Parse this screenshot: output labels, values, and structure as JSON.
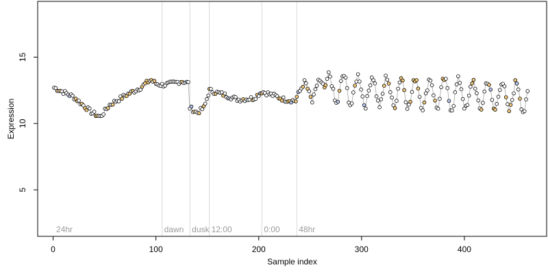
{
  "chart_data": {
    "type": "scatter",
    "xlabel": "Sample index",
    "ylabel": "Expression",
    "xlim": [
      -15,
      480
    ],
    "ylim": [
      1.5,
      19.2
    ],
    "x_ticks": [
      0,
      100,
      200,
      300,
      400
    ],
    "y_ticks": [
      5,
      10,
      15
    ],
    "grid": false,
    "phase_markers": [
      {
        "label": "24hr",
        "x": 1
      },
      {
        "label": "dawn",
        "x": 106
      },
      {
        "label": "dusk",
        "x": 133
      },
      {
        "label": "12:00",
        "x": 152
      },
      {
        "label": "0:00",
        "x": 203
      },
      {
        "label": "48hr",
        "x": 237
      }
    ],
    "segments": [
      {
        "x_start": 1,
        "x_end": 106,
        "points": [
          [
            1,
            12.7
          ],
          [
            20,
            12.0
          ],
          [
            32,
            11.2
          ],
          [
            38,
            10.8
          ],
          [
            46,
            10.5
          ],
          [
            55,
            11.4
          ],
          [
            70,
            12.1
          ],
          [
            85,
            12.7
          ],
          [
            95,
            13.3
          ],
          [
            100,
            13.0
          ],
          [
            106,
            12.9
          ]
        ]
      },
      {
        "x_start": 106,
        "x_end": 133,
        "points": [
          [
            106,
            12.9
          ],
          [
            115,
            13.0
          ],
          [
            125,
            13.2
          ],
          [
            133,
            13.0
          ]
        ]
      },
      {
        "x_start": 133,
        "x_end": 152,
        "points": [
          [
            133,
            11.2
          ],
          [
            140,
            10.8
          ],
          [
            147,
            11.2
          ],
          [
            152,
            12.5
          ]
        ]
      },
      {
        "x_start": 152,
        "x_end": 203,
        "points": [
          [
            152,
            12.5
          ],
          [
            165,
            12.2
          ],
          [
            180,
            11.8
          ],
          [
            195,
            11.9
          ],
          [
            203,
            12.4
          ]
        ]
      },
      {
        "x_start": 203,
        "x_end": 237,
        "points": [
          [
            203,
            12.4
          ],
          [
            215,
            12.1
          ],
          [
            225,
            11.8
          ],
          [
            237,
            11.7
          ]
        ]
      },
      {
        "x_start": 237,
        "x_end": 265,
        "points": [
          [
            237,
            12.0
          ],
          [
            245,
            13.2
          ],
          [
            252,
            11.6
          ],
          [
            258,
            13.3
          ],
          [
            265,
            12.6
          ]
        ]
      },
      {
        "x_start": 265,
        "x_end": 462,
        "points": [
          [
            265,
            12.6
          ],
          [
            462,
            12.0
          ]
        ],
        "oscillation": {
          "period": 14,
          "amplitude": 1.1
        }
      }
    ],
    "colors": {
      "point_stroke": "#000000",
      "point_fill_default": "#ffffff",
      "point_fill_accent_a": "#f2c97a",
      "point_fill_accent_b": "#b7c7ee",
      "line": "#555555",
      "highlight_orange": "#e6b380",
      "highlight_blue": "#8899dd",
      "phase_line": "#d8d8d8",
      "phase_text": "#9a9a9a",
      "frame": "#000000"
    }
  }
}
